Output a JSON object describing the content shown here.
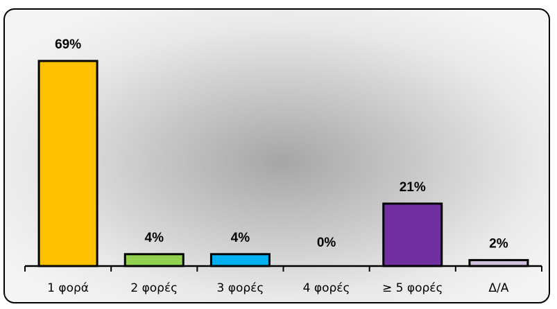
{
  "chart_data": {
    "type": "bar",
    "categories": [
      "1 φορά",
      "2 φορές",
      "3 φορές",
      "4 φορές",
      "≥ 5 φορές",
      "Δ/Α"
    ],
    "values": [
      69,
      4,
      4,
      0,
      21,
      2
    ],
    "data_labels": [
      "69%",
      "4%",
      "4%",
      "0%",
      "21%",
      "2%"
    ],
    "colors": [
      "#ffc000",
      "#92d050",
      "#00b0f0",
      "#bfbfbf",
      "#7030a0",
      "#ccc0da"
    ],
    "title": "",
    "xlabel": "",
    "ylabel": "",
    "ylim": [
      0,
      69
    ],
    "grid": false,
    "legend": "none"
  }
}
